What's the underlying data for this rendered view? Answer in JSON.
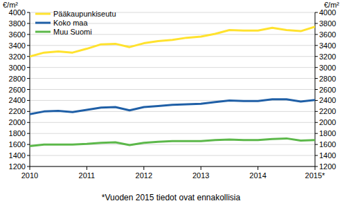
{
  "chart_data": {
    "type": "line",
    "y_label": "€/m²",
    "annotations": [
      "*Vuoden 2015 tiedot ovat ennakollisia"
    ],
    "x": [
      2010,
      2010.25,
      2010.5,
      2010.75,
      2011,
      2011.25,
      2011.5,
      2011.75,
      2012,
      2012.25,
      2012.5,
      2012.75,
      2013,
      2013.25,
      2013.5,
      2013.75,
      2014,
      2014.25,
      2014.5,
      2014.75,
      2015
    ],
    "series": [
      {
        "name": "Pääkaupunkiseutu",
        "color": "#ffe22e",
        "values": [
          3200,
          3270,
          3290,
          3270,
          3340,
          3420,
          3430,
          3370,
          3440,
          3480,
          3500,
          3540,
          3560,
          3610,
          3680,
          3670,
          3670,
          3720,
          3680,
          3660,
          3740
        ]
      },
      {
        "name": "Koko maa",
        "color": "#1f5fa6",
        "values": [
          2150,
          2200,
          2210,
          2190,
          2230,
          2270,
          2280,
          2220,
          2280,
          2300,
          2320,
          2330,
          2340,
          2370,
          2400,
          2390,
          2390,
          2420,
          2420,
          2380,
          2410
        ]
      },
      {
        "name": "Muu Suomi",
        "color": "#5cb84a",
        "values": [
          1570,
          1600,
          1600,
          1600,
          1610,
          1630,
          1640,
          1590,
          1630,
          1650,
          1660,
          1660,
          1660,
          1680,
          1690,
          1680,
          1680,
          1700,
          1710,
          1670,
          1680
        ]
      }
    ],
    "xlim": [
      2010,
      2015
    ],
    "xticks": [
      2010,
      2011,
      2012,
      2013,
      2014,
      {
        "value": 2015,
        "label": "2015*"
      }
    ],
    "ylim": [
      1200,
      4000
    ],
    "yticks": [
      1200,
      1400,
      1600,
      1800,
      2000,
      2200,
      2400,
      2600,
      2800,
      3000,
      3200,
      3400,
      3600,
      3800,
      4000
    ],
    "y2lim": [
      1200,
      4000
    ],
    "y2ticks": [
      1200,
      1400,
      1600,
      1800,
      2000,
      2200,
      2400,
      2600,
      2800,
      3000,
      3200,
      3400,
      3600,
      3800,
      4000
    ],
    "grid": true,
    "legend": "top-left"
  }
}
